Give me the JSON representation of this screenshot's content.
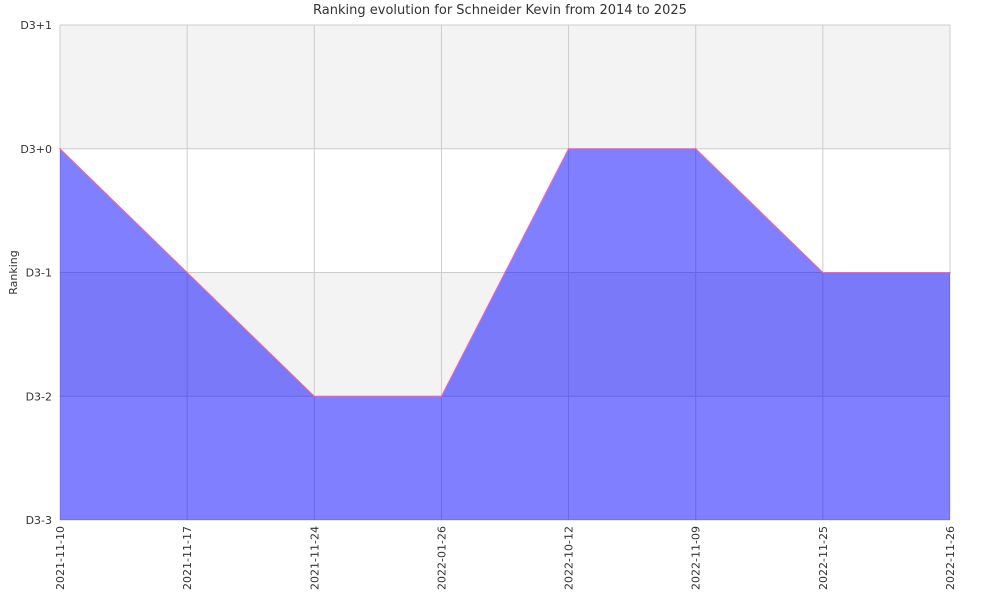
{
  "chart_data": {
    "type": "area",
    "title": "Ranking evolution for Schneider Kevin from 2014 to 2025",
    "xlabel": "",
    "ylabel": "Ranking",
    "categories": [
      "2021-11-10",
      "2021-11-17",
      "2021-11-24",
      "2022-01-26",
      "2022-10-12",
      "2022-11-09",
      "2022-11-25",
      "2022-11-26"
    ],
    "y_ticks": [
      "D3+1",
      "D3+0",
      "D3-1",
      "D3-2",
      "D3-3"
    ],
    "y_tick_values": [
      1,
      0,
      -1,
      -2,
      -3
    ],
    "ylim": [
      -3,
      1
    ],
    "series": [
      {
        "values": [
          0,
          -1,
          -2,
          -2,
          0,
          0,
          -1,
          -1
        ]
      }
    ],
    "grid": true,
    "colors": {
      "fill": "#8080ff",
      "line": "#ff6688",
      "band_light": "#f3f3f3",
      "band_white": "#ffffff",
      "grid": "#cccccc"
    }
  }
}
